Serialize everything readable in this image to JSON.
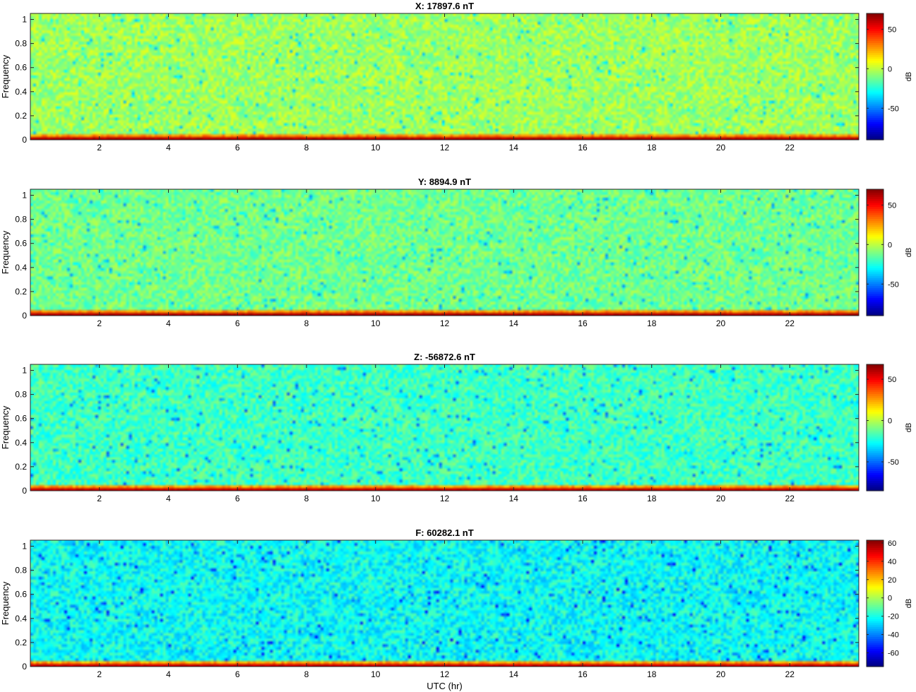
{
  "figure": {
    "xlabel": "UTC (hr)"
  },
  "chart_data": [
    {
      "type": "heatmap",
      "title": "X: 17897.6 nT",
      "ylabel": "Frequency",
      "xlim": [
        0,
        24
      ],
      "ylim": [
        0,
        1.05
      ],
      "xticks": [
        "2",
        "4",
        "6",
        "8",
        "10",
        "12",
        "14",
        "16",
        "18",
        "20",
        "22"
      ],
      "yticks": [
        "0",
        "0.2",
        "0.4",
        "0.6",
        "0.8",
        "1"
      ],
      "colorbar": {
        "label": "dB",
        "range": [
          -90,
          70
        ],
        "ticks": [
          "-50",
          "0",
          "50"
        ],
        "colormap": "jet"
      },
      "background_db": -5,
      "low_band_db": 45
    },
    {
      "type": "heatmap",
      "title": "Y: 8894.9 nT",
      "ylabel": "Frequency",
      "xlim": [
        0,
        24
      ],
      "ylim": [
        0,
        1.05
      ],
      "xticks": [
        "2",
        "4",
        "6",
        "8",
        "10",
        "12",
        "14",
        "16",
        "18",
        "20",
        "22"
      ],
      "yticks": [
        "0",
        "0.2",
        "0.4",
        "0.6",
        "0.8",
        "1"
      ],
      "colorbar": {
        "label": "dB",
        "range": [
          -90,
          70
        ],
        "ticks": [
          "-50",
          "0",
          "50"
        ],
        "colormap": "jet"
      },
      "background_db": -12,
      "low_band_db": 45
    },
    {
      "type": "heatmap",
      "title": "Z: -56872.6 nT",
      "ylabel": "Frequency",
      "xlim": [
        0,
        24
      ],
      "ylim": [
        0,
        1.05
      ],
      "xticks": [
        "2",
        "4",
        "6",
        "8",
        "10",
        "12",
        "14",
        "16",
        "18",
        "20",
        "22"
      ],
      "yticks": [
        "0",
        "0.2",
        "0.4",
        "0.6",
        "0.8",
        "1"
      ],
      "colorbar": {
        "label": "dB",
        "range": [
          -85,
          68
        ],
        "ticks": [
          "-50",
          "0",
          "50"
        ],
        "colormap": "jet"
      },
      "background_db": -18,
      "low_band_db": 40
    },
    {
      "type": "heatmap",
      "title": "F: 60282.1 nT",
      "ylabel": "Frequency",
      "xlim": [
        0,
        24
      ],
      "ylim": [
        0,
        1.05
      ],
      "xticks": [
        "2",
        "4",
        "6",
        "8",
        "10",
        "12",
        "14",
        "16",
        "18",
        "20",
        "22"
      ],
      "yticks": [
        "0",
        "0.2",
        "0.4",
        "0.6",
        "0.8",
        "1"
      ],
      "colorbar": {
        "label": "dB",
        "range": [
          -75,
          63
        ],
        "ticks": [
          "-60",
          "-40",
          "-20",
          "0",
          "20",
          "40",
          "60"
        ],
        "colormap": "jet"
      },
      "background_db": -22,
      "low_band_db": 35
    }
  ]
}
